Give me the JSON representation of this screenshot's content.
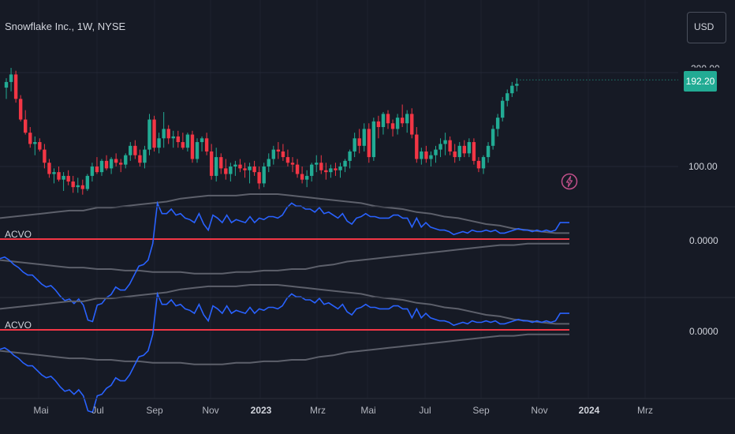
{
  "header": {
    "title": "Snowflake Inc., 1W, NYSE"
  },
  "currency_button": {
    "label": "USD"
  },
  "price_axis": {
    "last_price": "192.20",
    "label_100": "100.00",
    "cut_label": "200.00"
  },
  "indicators": [
    {
      "name": "ACVO",
      "value": "0.0000"
    },
    {
      "name": "ACVO",
      "value": "0.0000"
    }
  ],
  "time_axis": {
    "ticks": [
      "Mai",
      "Jul",
      "Sep",
      "Nov",
      "2023",
      "Mrz",
      "Mai",
      "Jul",
      "Sep",
      "Nov",
      "2024",
      "Mrz"
    ]
  },
  "colors": {
    "background": "#161a25",
    "up": "#22ab94",
    "down": "#f23645",
    "oscillator": "#2962ff",
    "zero_line": "#f23645",
    "band": "#5d606b"
  },
  "chart_data": {
    "type": "candlestick",
    "series_name": "Snowflake Inc.",
    "interval": "1W",
    "exchange": "NYSE",
    "y_ticks": [
      100,
      200
    ],
    "last_price": 192.2,
    "ohlc": [
      [
        184,
        194,
        172,
        190
      ],
      [
        190,
        205,
        180,
        198
      ],
      [
        198,
        202,
        168,
        172
      ],
      [
        172,
        176,
        148,
        150
      ],
      [
        150,
        160,
        134,
        136
      ],
      [
        136,
        142,
        120,
        124
      ],
      [
        124,
        132,
        112,
        126
      ],
      [
        126,
        130,
        116,
        118
      ],
      [
        118,
        124,
        98,
        104
      ],
      [
        104,
        108,
        88,
        92
      ],
      [
        92,
        98,
        82,
        94
      ],
      [
        94,
        100,
        84,
        86
      ],
      [
        86,
        94,
        74,
        90
      ],
      [
        90,
        96,
        80,
        84
      ],
      [
        84,
        90,
        72,
        78
      ],
      [
        78,
        88,
        72,
        80
      ],
      [
        80,
        86,
        70,
        76
      ],
      [
        76,
        92,
        74,
        90
      ],
      [
        90,
        104,
        84,
        100
      ],
      [
        100,
        110,
        92,
        94
      ],
      [
        94,
        108,
        90,
        106
      ],
      [
        106,
        112,
        96,
        98
      ],
      [
        98,
        110,
        92,
        108
      ],
      [
        108,
        114,
        100,
        104
      ],
      [
        104,
        108,
        94,
        102
      ],
      [
        102,
        114,
        98,
        112
      ],
      [
        112,
        126,
        106,
        122
      ],
      [
        122,
        128,
        108,
        112
      ],
      [
        112,
        118,
        100,
        104
      ],
      [
        104,
        122,
        98,
        118
      ],
      [
        118,
        156,
        112,
        150
      ],
      [
        150,
        154,
        116,
        120
      ],
      [
        120,
        136,
        114,
        130
      ],
      [
        130,
        158,
        120,
        140
      ],
      [
        140,
        144,
        124,
        130
      ],
      [
        130,
        138,
        120,
        132
      ],
      [
        132,
        138,
        120,
        126
      ],
      [
        126,
        136,
        118,
        120
      ],
      [
        120,
        136,
        116,
        134
      ],
      [
        134,
        138,
        104,
        108
      ],
      [
        108,
        130,
        104,
        126
      ],
      [
        126,
        132,
        116,
        130
      ],
      [
        130,
        136,
        112,
        116
      ],
      [
        116,
        124,
        86,
        90
      ],
      [
        90,
        120,
        84,
        110
      ],
      [
        110,
        114,
        92,
        98
      ],
      [
        98,
        108,
        86,
        92
      ],
      [
        92,
        104,
        84,
        100
      ],
      [
        100,
        106,
        90,
        102
      ],
      [
        102,
        108,
        94,
        98
      ],
      [
        98,
        104,
        88,
        96
      ],
      [
        96,
        104,
        82,
        100
      ],
      [
        100,
        106,
        90,
        94
      ],
      [
        94,
        100,
        76,
        82
      ],
      [
        82,
        104,
        78,
        100
      ],
      [
        100,
        114,
        94,
        108
      ],
      [
        108,
        122,
        102,
        118
      ],
      [
        118,
        126,
        108,
        116
      ],
      [
        116,
        124,
        106,
        110
      ],
      [
        110,
        118,
        100,
        104
      ],
      [
        104,
        110,
        94,
        102
      ],
      [
        102,
        108,
        88,
        92
      ],
      [
        92,
        100,
        82,
        86
      ],
      [
        86,
        96,
        78,
        90
      ],
      [
        90,
        104,
        84,
        102
      ],
      [
        102,
        112,
        94,
        104
      ],
      [
        104,
        112,
        92,
        96
      ],
      [
        96,
        104,
        86,
        94
      ],
      [
        94,
        102,
        88,
        98
      ],
      [
        98,
        104,
        90,
        96
      ],
      [
        96,
        104,
        88,
        100
      ],
      [
        100,
        108,
        94,
        106
      ],
      [
        106,
        118,
        98,
        116
      ],
      [
        116,
        136,
        110,
        130
      ],
      [
        130,
        140,
        114,
        122
      ],
      [
        122,
        146,
        116,
        140
      ],
      [
        140,
        146,
        104,
        110
      ],
      [
        110,
        152,
        106,
        148
      ],
      [
        148,
        154,
        130,
        142
      ],
      [
        142,
        158,
        134,
        156
      ],
      [
        156,
        160,
        140,
        146
      ],
      [
        146,
        150,
        132,
        140
      ],
      [
        140,
        156,
        134,
        152
      ],
      [
        152,
        166,
        142,
        146
      ],
      [
        146,
        160,
        136,
        156
      ],
      [
        156,
        162,
        130,
        134
      ],
      [
        134,
        142,
        104,
        108
      ],
      [
        108,
        120,
        102,
        116
      ],
      [
        116,
        122,
        104,
        108
      ],
      [
        108,
        116,
        100,
        112
      ],
      [
        112,
        122,
        104,
        118
      ],
      [
        118,
        130,
        110,
        124
      ],
      [
        124,
        136,
        112,
        128
      ],
      [
        128,
        132,
        112,
        116
      ],
      [
        116,
        124,
        104,
        110
      ],
      [
        110,
        126,
        106,
        122
      ],
      [
        122,
        128,
        110,
        114
      ],
      [
        114,
        130,
        110,
        126
      ],
      [
        126,
        130,
        102,
        106
      ],
      [
        106,
        110,
        94,
        98
      ],
      [
        98,
        112,
        92,
        110
      ],
      [
        110,
        126,
        104,
        122
      ],
      [
        122,
        144,
        118,
        140
      ],
      [
        140,
        156,
        132,
        152
      ],
      [
        152,
        174,
        148,
        170
      ],
      [
        170,
        182,
        164,
        178
      ],
      [
        178,
        190,
        174,
        186
      ],
      [
        186,
        194,
        180,
        188
      ]
    ],
    "indicator": {
      "name": "ACVO",
      "oscillator": [
        -0.13,
        -0.12,
        -0.14,
        -0.17,
        -0.19,
        -0.22,
        -0.24,
        -0.24,
        -0.27,
        -0.3,
        -0.32,
        -0.31,
        -0.34,
        -0.38,
        -0.41,
        -0.4,
        -0.43,
        -0.4,
        -0.44,
        -0.54,
        -0.55,
        -0.44,
        -0.43,
        -0.39,
        -0.37,
        -0.32,
        -0.34,
        -0.34,
        -0.3,
        -0.24,
        -0.18,
        -0.17,
        -0.14,
        -0.03,
        0.24,
        0.17,
        0.17,
        0.2,
        0.16,
        0.17,
        0.14,
        0.13,
        0.11,
        0.17,
        0.1,
        0.06,
        0.16,
        0.14,
        0.11,
        0.16,
        0.11,
        0.13,
        0.12,
        0.11,
        0.15,
        0.11,
        0.14,
        0.13,
        0.15,
        0.15,
        0.14,
        0.16,
        0.21,
        0.24,
        0.22,
        0.22,
        0.2,
        0.2,
        0.18,
        0.21,
        0.17,
        0.18,
        0.16,
        0.14,
        0.17,
        0.12,
        0.1,
        0.14,
        0.15,
        0.17,
        0.15,
        0.15,
        0.14,
        0.14,
        0.14,
        0.16,
        0.16,
        0.14,
        0.14,
        0.08,
        0.14,
        0.08,
        0.11,
        0.08,
        0.07,
        0.06,
        0.06,
        0.05,
        0.03,
        0.04,
        0.05,
        0.04,
        0.06,
        0.05,
        0.05,
        0.06,
        0.05,
        0.06,
        0.04,
        0.04,
        0.05,
        0.06,
        0.07,
        0.06,
        0.06,
        0.05,
        0.06,
        0.05,
        0.06,
        0.05,
        0.06,
        0.11,
        0.11,
        0.11
      ],
      "upper_band": [
        0.14,
        0.15,
        0.16,
        0.17,
        0.18,
        0.19,
        0.19,
        0.21,
        0.21,
        0.22,
        0.23,
        0.24,
        0.25,
        0.27,
        0.28,
        0.29,
        0.29,
        0.29,
        0.3,
        0.3,
        0.3,
        0.29,
        0.28,
        0.27,
        0.26,
        0.25,
        0.24,
        0.22,
        0.21,
        0.2,
        0.18,
        0.17,
        0.15,
        0.14,
        0.12,
        0.1,
        0.09,
        0.07,
        0.06,
        0.05,
        0.04,
        0.04
      ],
      "lower_band": [
        -0.14,
        -0.15,
        -0.16,
        -0.17,
        -0.18,
        -0.19,
        -0.19,
        -0.2,
        -0.2,
        -0.21,
        -0.21,
        -0.22,
        -0.22,
        -0.22,
        -0.23,
        -0.23,
        -0.23,
        -0.22,
        -0.22,
        -0.21,
        -0.21,
        -0.2,
        -0.2,
        -0.18,
        -0.17,
        -0.15,
        -0.14,
        -0.13,
        -0.12,
        -0.11,
        -0.1,
        -0.09,
        -0.08,
        -0.07,
        -0.06,
        -0.05,
        -0.04,
        -0.04,
        -0.03,
        -0.03,
        -0.03,
        -0.03
      ],
      "zero_line": 0
    }
  }
}
